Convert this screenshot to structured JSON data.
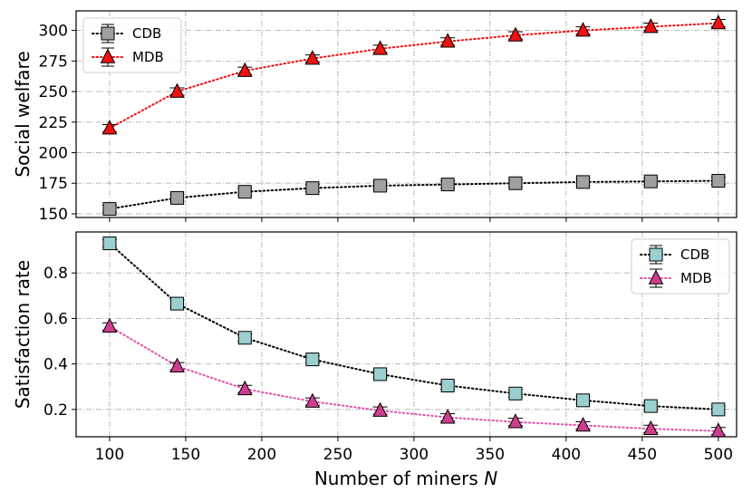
{
  "chart_data": [
    {
      "type": "line",
      "title": "",
      "xlabel": "",
      "ylabel": "Social welfare",
      "x": [
        100,
        144.4,
        188.9,
        233.3,
        277.8,
        322.2,
        366.7,
        411.1,
        455.6,
        500
      ],
      "xlim": [
        78,
        512
      ],
      "ylim": [
        147,
        316
      ],
      "yticks": [
        150,
        175,
        200,
        225,
        250,
        275,
        300
      ],
      "grid": true,
      "legend": "top-left",
      "series": [
        {
          "name": "CDB",
          "marker": "square",
          "color": "#a0a0a0",
          "line_color": "#000000",
          "values": [
            154,
            163,
            168,
            171,
            173,
            174,
            175,
            176,
            176.5,
            177
          ]
        },
        {
          "name": "MDB",
          "marker": "triangle",
          "color": "#ee1111",
          "line_color": "#ee1111",
          "values": [
            220,
            250,
            267,
            277,
            285,
            291,
            296,
            300,
            303,
            306
          ]
        }
      ]
    },
    {
      "type": "line",
      "title": "",
      "xlabel": "Number of miners",
      "xlabel_var": "N",
      "ylabel": "Satisfaction rate",
      "x": [
        100,
        144.4,
        188.9,
        233.3,
        277.8,
        322.2,
        366.7,
        411.1,
        455.6,
        500
      ],
      "xlim": [
        78,
        512
      ],
      "ylim": [
        0.08,
        0.98
      ],
      "yticks": [
        0.2,
        0.4,
        0.6,
        0.8
      ],
      "xticks": [
        100,
        150,
        200,
        250,
        300,
        350,
        400,
        450,
        500
      ],
      "grid": true,
      "legend": "top-right",
      "series": [
        {
          "name": "CDB",
          "marker": "square",
          "color": "#9ccfcf",
          "line_color": "#000000",
          "values": [
            0.93,
            0.665,
            0.515,
            0.42,
            0.355,
            0.305,
            0.27,
            0.24,
            0.215,
            0.2
          ]
        },
        {
          "name": "MDB",
          "marker": "triangle",
          "color": "#cc3d8e",
          "line_color": "#dd55aa",
          "values": [
            0.565,
            0.39,
            0.29,
            0.235,
            0.195,
            0.165,
            0.145,
            0.13,
            0.115,
            0.105
          ]
        }
      ]
    }
  ]
}
